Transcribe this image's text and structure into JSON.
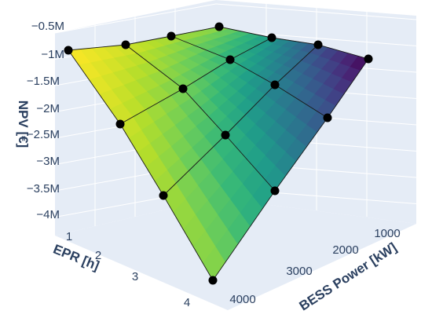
{
  "chart_data": {
    "type": "surface",
    "colorscale": "viridis",
    "xlabel": "BESS Power [kW]",
    "ylabel": "EPR [h]",
    "zlabel": "NPV [€]",
    "x_ticks": [
      "1000",
      "2000",
      "3000",
      "4000"
    ],
    "y_ticks": [
      "1",
      "2",
      "3",
      "4"
    ],
    "z_ticks": [
      "−0.5M",
      "−1M",
      "−1.5M",
      "−2M",
      "−2.5M",
      "−3M",
      "−3.5M",
      "−4M"
    ],
    "x": [
      1000,
      2000,
      3000,
      4000
    ],
    "y": [
      1,
      2,
      3,
      4
    ],
    "z": [
      [
        -0.4,
        -0.68,
        -0.95,
        -1.1
      ],
      [
        -0.68,
        -1.3,
        -1.9,
        -2.4
      ],
      [
        -0.95,
        -1.9,
        -2.8,
        -3.6
      ],
      [
        -1.1,
        -2.4,
        -3.6,
        -4.7
      ]
    ],
    "zlim": [
      -4.7,
      -0.4
    ],
    "markers": true,
    "grid": true
  }
}
